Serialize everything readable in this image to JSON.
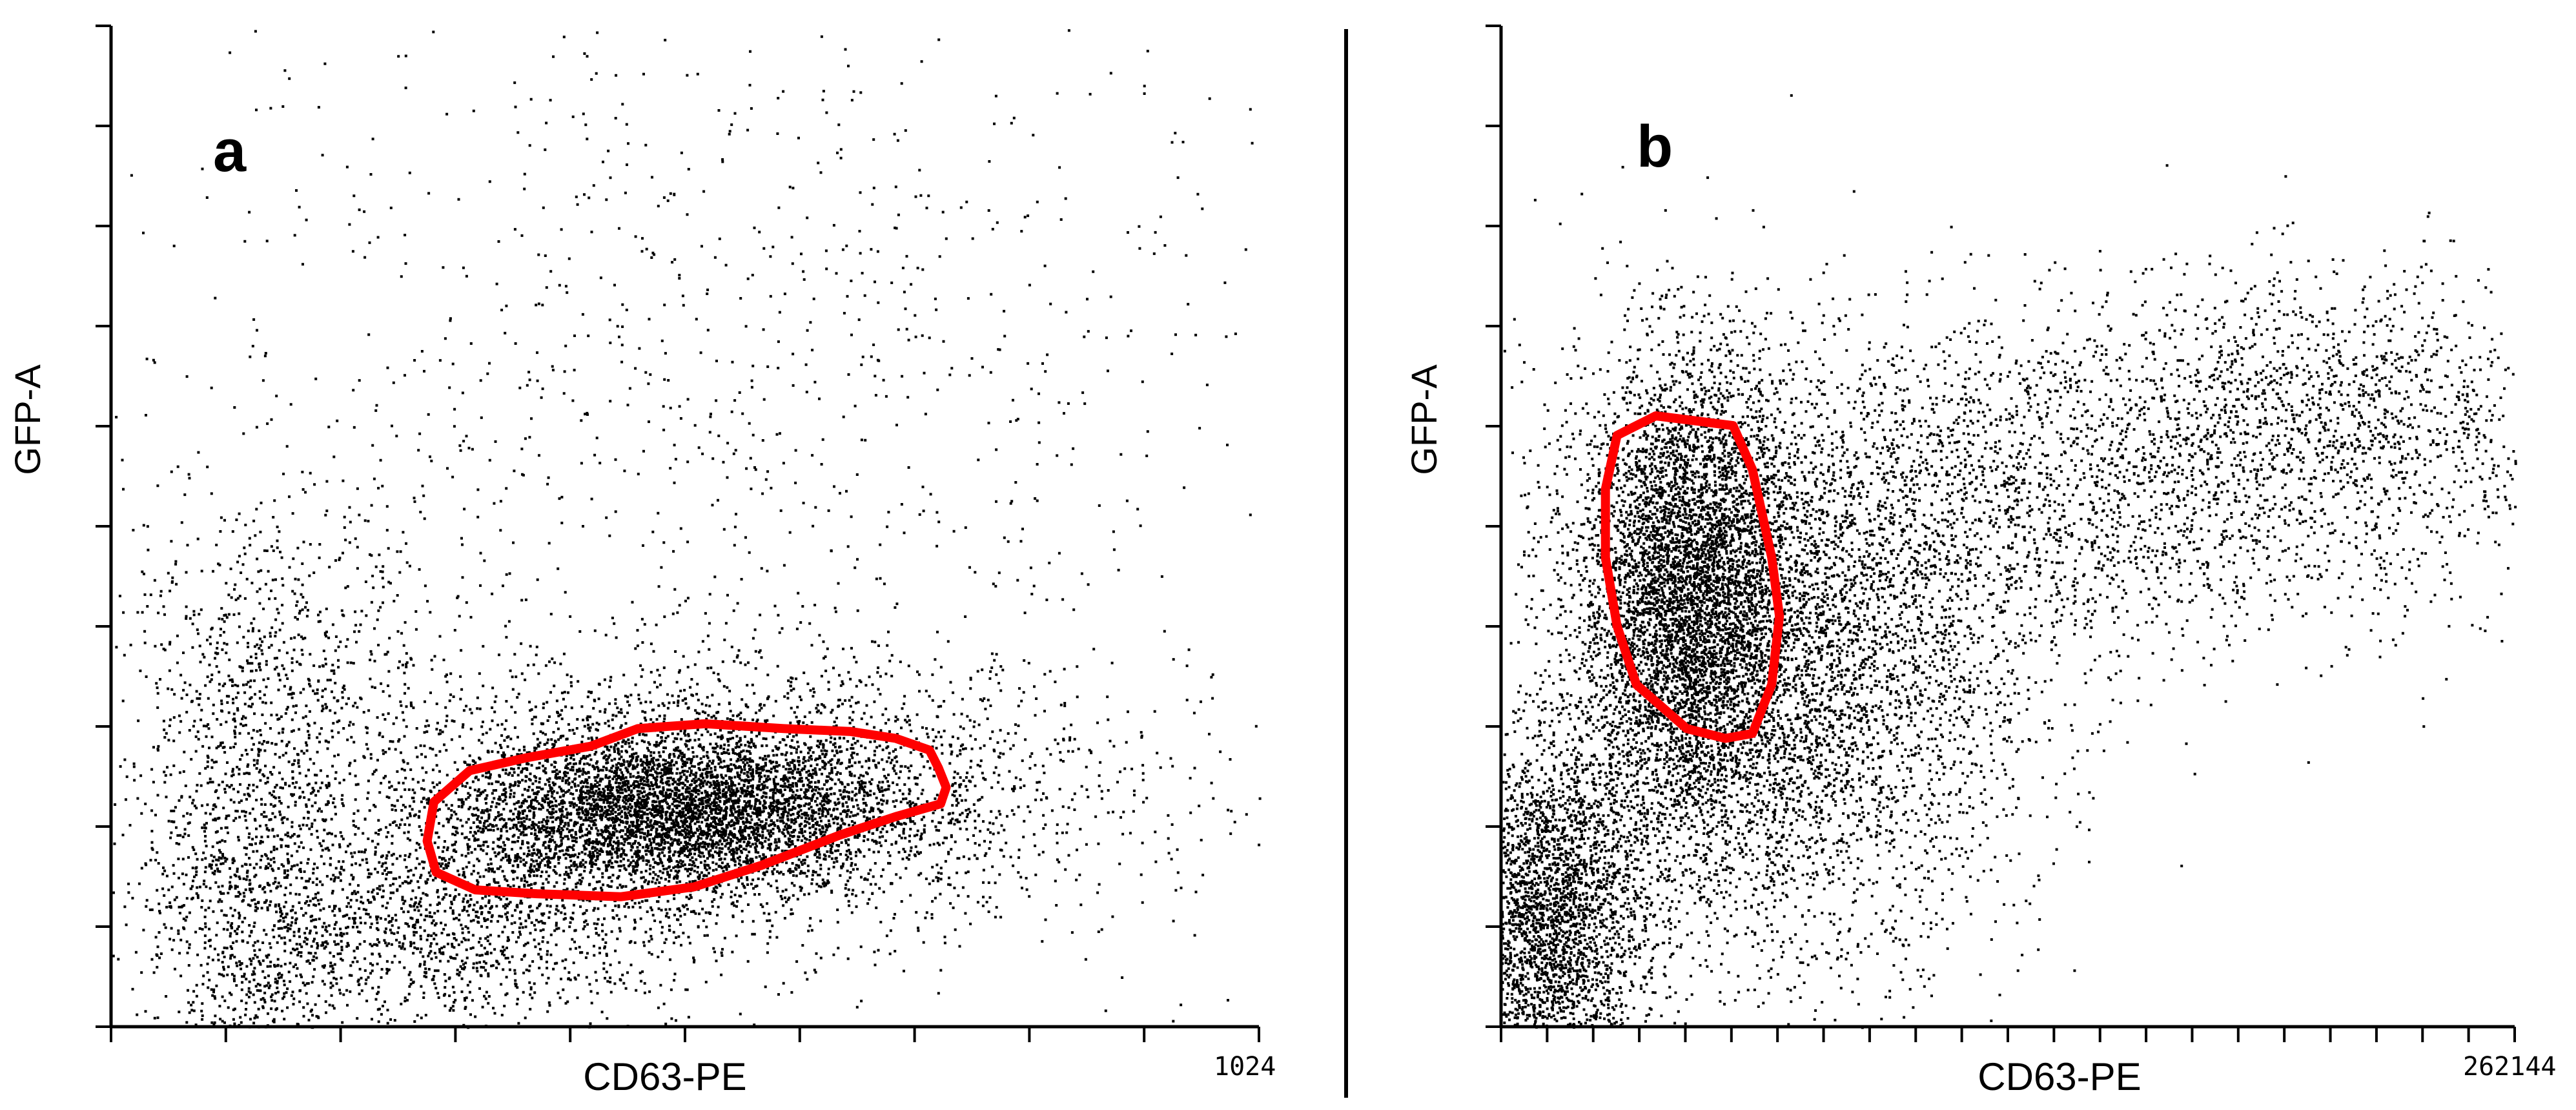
{
  "chart_data": [
    {
      "type": "scatter",
      "panel_label": "a",
      "xlabel": "CD63-PE",
      "ylabel": "GFP-A",
      "x_end_label": "1024",
      "xlim": [
        0,
        1024
      ],
      "ylim": [
        0,
        1024
      ],
      "x_tick_count": 11,
      "y_tick_count": 11,
      "grid": false,
      "gate_color": "#ff0000",
      "point_color": "#000000",
      "gate": {
        "name": "gate-a",
        "points": [
          [
            428,
            287
          ],
          [
            470,
            305
          ],
          [
            530,
            310
          ],
          [
            600,
            305
          ],
          [
            660,
            302
          ],
          [
            700,
            295
          ],
          [
            730,
            283
          ],
          [
            738,
            265
          ],
          [
            745,
            245
          ],
          [
            740,
            228
          ],
          [
            700,
            215
          ],
          [
            650,
            196
          ],
          [
            580,
            165
          ],
          [
            520,
            143
          ],
          [
            455,
            133
          ],
          [
            380,
            136
          ],
          [
            325,
            140
          ],
          [
            290,
            158
          ],
          [
            282,
            190
          ],
          [
            288,
            230
          ],
          [
            320,
            262
          ],
          [
            370,
            275
          ]
        ]
      },
      "clusters": [
        {
          "cx": 500,
          "cy": 220,
          "sx": 100,
          "sy": 40,
          "n": 4200
        },
        {
          "cx": 560,
          "cy": 240,
          "sx": 170,
          "sy": 70,
          "n": 2600
        },
        {
          "cx": 300,
          "cy": 110,
          "sx": 110,
          "sy": 55,
          "n": 1500
        },
        {
          "cx": 120,
          "cy": 150,
          "sx": 45,
          "sy": 150,
          "n": 1300
        },
        {
          "cx": 170,
          "cy": 360,
          "sx": 80,
          "sy": 100,
          "n": 600
        },
        {
          "cx": 580,
          "cy": 700,
          "sx": 200,
          "sy": 200,
          "n": 500
        },
        {
          "cx": 500,
          "cy": 500,
          "sx": 350,
          "sy": 300,
          "n": 650
        }
      ]
    },
    {
      "type": "scatter",
      "panel_label": "b",
      "xlabel": "CD63-PE",
      "ylabel": "GFP-A",
      "x_end_label": "262144",
      "xlim": [
        0,
        262144
      ],
      "ylim": [
        0,
        1024
      ],
      "x_tick_count": 23,
      "y_tick_count": 11,
      "grid": false,
      "gate_color": "#ff0000",
      "point_color": "#000000",
      "gate": {
        "name": "gate-b",
        "points": [
          [
            30000,
            605
          ],
          [
            40000,
            625
          ],
          [
            50000,
            620
          ],
          [
            60000,
            615
          ],
          [
            65000,
            570
          ],
          [
            70000,
            480
          ],
          [
            72000,
            420
          ],
          [
            70000,
            350
          ],
          [
            65000,
            300
          ],
          [
            58000,
            295
          ],
          [
            48000,
            305
          ],
          [
            35000,
            350
          ],
          [
            30000,
            410
          ],
          [
            27000,
            480
          ],
          [
            27000,
            550
          ]
        ]
      },
      "clusters": [
        {
          "cx": 12000,
          "cy": 110,
          "sx": 12000,
          "sy": 90,
          "n": 3000
        },
        {
          "cx": 48000,
          "cy": 440,
          "sx": 14000,
          "sy": 120,
          "n": 5000
        },
        {
          "cx": 80000,
          "cy": 390,
          "sx": 30000,
          "sy": 130,
          "n": 3000
        },
        {
          "cx": 150000,
          "cy": 560,
          "sx": 60000,
          "sy": 90,
          "n": 2800
        },
        {
          "cx": 215000,
          "cy": 640,
          "sx": 30000,
          "sy": 70,
          "n": 900
        },
        {
          "cx": 70000,
          "cy": 250,
          "sx": 30000,
          "sy": 120,
          "n": 1400
        }
      ]
    }
  ]
}
